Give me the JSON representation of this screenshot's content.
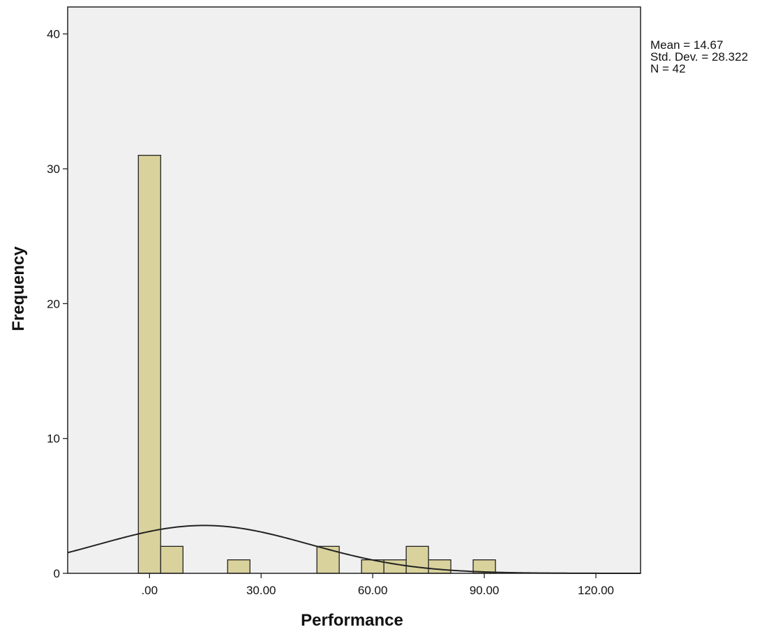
{
  "chart_data": {
    "type": "bar",
    "subtype": "histogram",
    "xlabel": "Performance",
    "ylabel": "Frequency",
    "xlim": [
      -22,
      132
    ],
    "ylim": [
      0,
      42
    ],
    "x_ticks": [
      {
        "value": 0,
        "label": ".00"
      },
      {
        "value": 30,
        "label": "30.00"
      },
      {
        "value": 60,
        "label": "60.00"
      },
      {
        "value": 90,
        "label": "90.00"
      },
      {
        "value": 120,
        "label": "120.00"
      }
    ],
    "y_ticks": [
      {
        "value": 0,
        "label": "0"
      },
      {
        "value": 10,
        "label": "10"
      },
      {
        "value": 20,
        "label": "20"
      },
      {
        "value": 30,
        "label": "30"
      },
      {
        "value": 40,
        "label": "40"
      }
    ],
    "bin_width": 6,
    "bins": [
      {
        "start": -3,
        "end": 3,
        "count": 31
      },
      {
        "start": 3,
        "end": 9,
        "count": 2
      },
      {
        "start": 21,
        "end": 27,
        "count": 1
      },
      {
        "start": 45,
        "end": 51,
        "count": 2
      },
      {
        "start": 57,
        "end": 63,
        "count": 1
      },
      {
        "start": 63,
        "end": 69,
        "count": 1
      },
      {
        "start": 69,
        "end": 75,
        "count": 2
      },
      {
        "start": 75,
        "end": 81,
        "count": 1
      },
      {
        "start": 87,
        "end": 93,
        "count": 1
      }
    ],
    "normal_curve": {
      "mean": 14.67,
      "std": 28.322,
      "n": 42
    },
    "stats_lines": [
      "Mean = 14.67",
      "Std. Dev. = 28.322",
      "N = 42"
    ],
    "grid": false,
    "colors": {
      "plot_background": "#f0f0f0",
      "bar_fill": "#d9d29c",
      "bar_stroke": "#222222",
      "curve": "#222222"
    }
  }
}
